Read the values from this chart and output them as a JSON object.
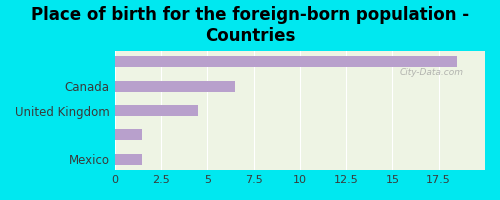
{
  "title": "Place of birth for the foreign-born population -\nCountries",
  "categories": [
    "",
    "Canada",
    "United Kingdom",
    "",
    "Mexico"
  ],
  "values": [
    18.5,
    6.5,
    4.5,
    1.5,
    1.5
  ],
  "bar_color": "#b8a0cc",
  "background_color": "#00e8f0",
  "plot_bg_color": "#eef4e4",
  "xlim": [
    0,
    20
  ],
  "xticks": [
    0,
    2.5,
    5,
    7.5,
    10,
    12.5,
    15,
    17.5
  ],
  "xtick_labels": [
    "0",
    "2.5",
    "5",
    "7.5",
    "10",
    "12.5",
    "15",
    "17.5"
  ],
  "title_fontsize": 12,
  "label_fontsize": 8.5,
  "tick_fontsize": 8,
  "watermark": "City-Data.com"
}
